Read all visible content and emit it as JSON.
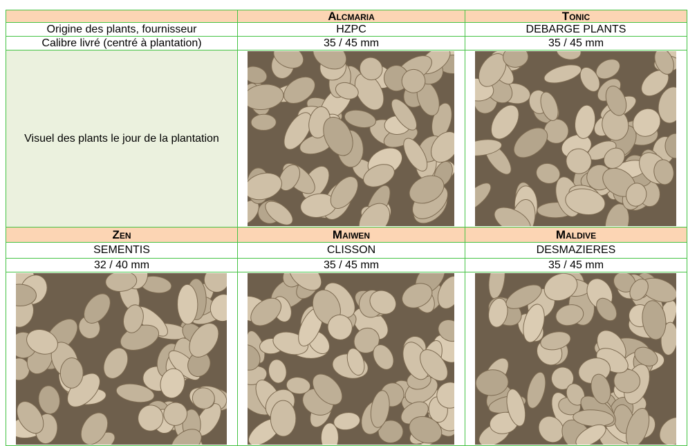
{
  "table": {
    "rows": [
      [
        "",
        "Alcmaria",
        "Tonic"
      ],
      [
        "Origine des plants, fournisseur",
        "HZPC",
        "DEBARGE PLANTS"
      ],
      [
        "Calibre livré (centré à plantation)",
        "35 / 45 mm",
        "35 / 45 mm"
      ],
      [
        "Visuel des plants le jour de la plantation"
      ],
      [
        "Zen",
        "Maiwen",
        "Maldive"
      ],
      [
        "SEMENTIS",
        "CLISSON",
        "DESMAZIERES"
      ],
      [
        "32 / 40 mm",
        "35 / 45 mm",
        "35 / 45 mm"
      ]
    ]
  }
}
